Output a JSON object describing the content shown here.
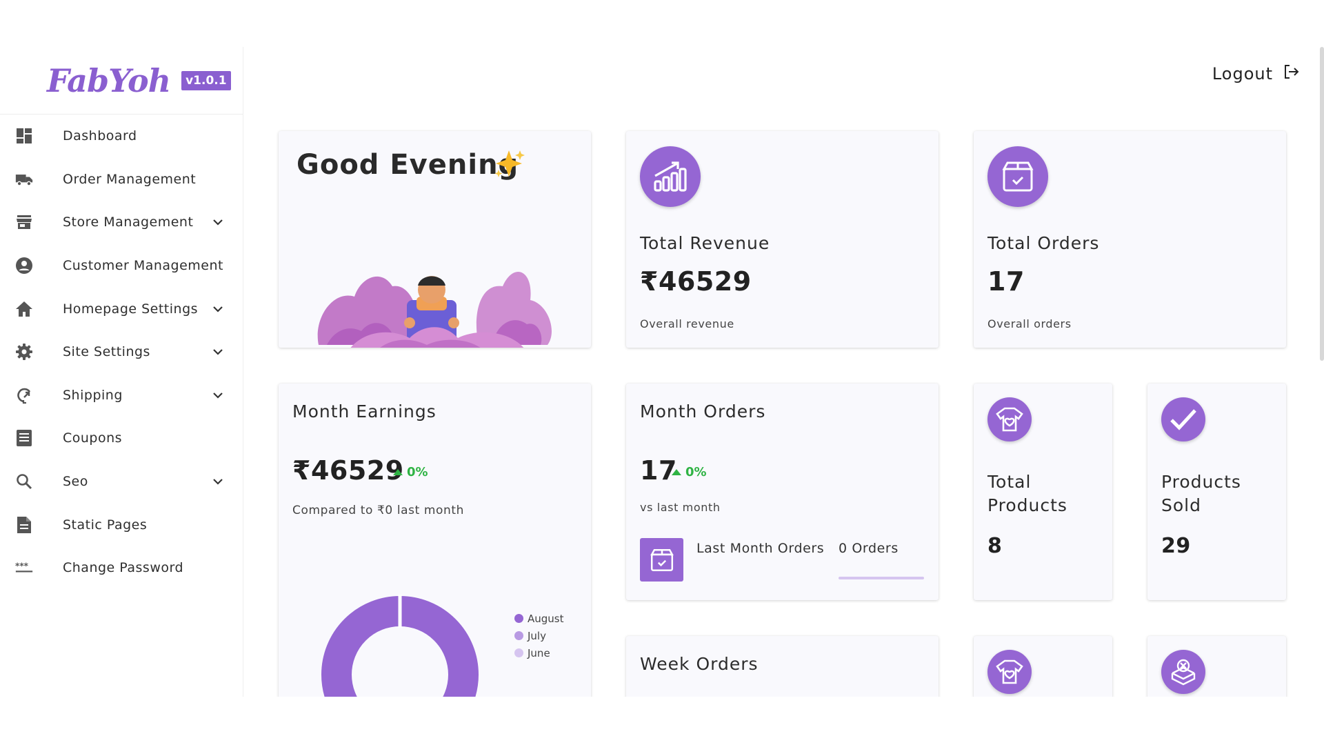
{
  "brand": {
    "logo": "FabYoh",
    "version": "v1.0.1"
  },
  "header": {
    "logout_label": "Logout"
  },
  "sidebar": {
    "items": [
      {
        "label": "Dashboard",
        "icon": "dashboard-icon",
        "expandable": false
      },
      {
        "label": "Order Management",
        "icon": "truck-icon",
        "expandable": false
      },
      {
        "label": "Store Management",
        "icon": "store-icon",
        "expandable": true
      },
      {
        "label": "Customer Management",
        "icon": "user-circle-icon",
        "expandable": false
      },
      {
        "label": "Homepage Settings",
        "icon": "home-icon",
        "expandable": true
      },
      {
        "label": "Site Settings",
        "icon": "gear-icon",
        "expandable": true
      },
      {
        "label": "Shipping",
        "icon": "shipping-icon",
        "expandable": true
      },
      {
        "label": "Coupons",
        "icon": "list-icon",
        "expandable": false
      },
      {
        "label": "Seo",
        "icon": "search-icon",
        "expandable": true
      },
      {
        "label": "Static Pages",
        "icon": "document-icon",
        "expandable": false
      },
      {
        "label": "Change Password",
        "icon": "password-icon",
        "expandable": false
      }
    ]
  },
  "greeting": {
    "text": "Good Evening",
    "icon": "sparkles-icon"
  },
  "total_revenue": {
    "title": "Total Revenue",
    "value": "₹46529",
    "caption": "Overall revenue",
    "icon": "chart-up-icon"
  },
  "total_orders": {
    "title": "Total Orders",
    "value": "17",
    "caption": "Overall orders",
    "icon": "box-check-icon"
  },
  "month_earnings": {
    "title": "Month Earnings",
    "value": "₹46529",
    "change": "0%",
    "caption": "Compared to ₹0 last month",
    "legend": [
      {
        "label": "August",
        "color": "#9566d3"
      },
      {
        "label": "July",
        "color": "#b89ae3"
      },
      {
        "label": "June",
        "color": "#d6c5f0"
      }
    ]
  },
  "month_orders": {
    "title": "Month Orders",
    "value": "17",
    "change": "0%",
    "caption": "vs last month",
    "last_month_label": "Last Month Orders",
    "last_month_value": "0 Orders"
  },
  "total_products": {
    "title": "Total Products",
    "value": "8",
    "icon": "shirt-heart-icon"
  },
  "products_sold": {
    "title": "Products Sold",
    "value": "29",
    "icon": "check-icon"
  },
  "week_orders": {
    "title": "Week Orders"
  },
  "colors": {
    "accent": "#9566d3",
    "positive": "#2fb344"
  }
}
